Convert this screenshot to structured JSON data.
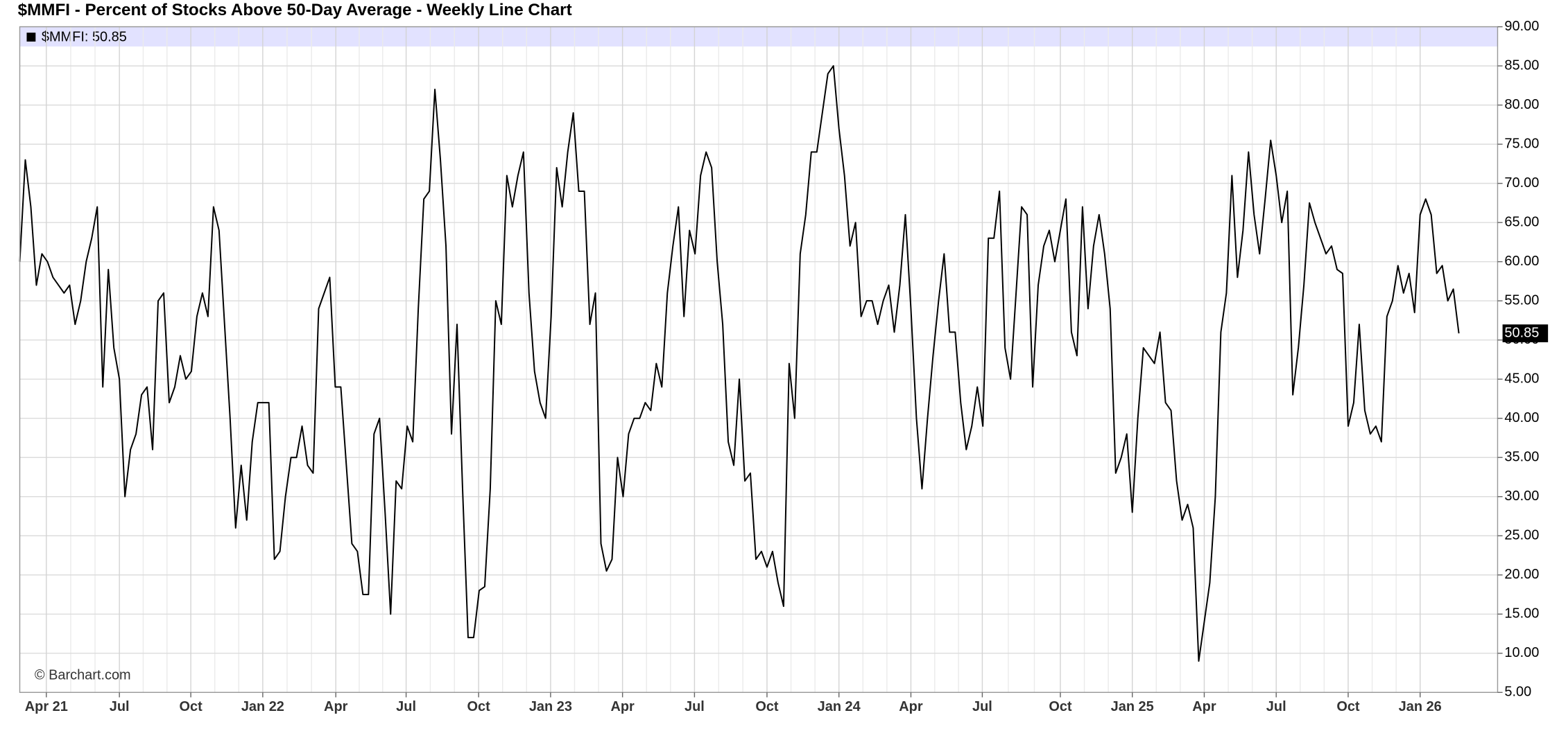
{
  "chart_data": {
    "type": "line",
    "title": "$MMFI - Percent of Stocks Above 50-Day Average - Weekly Line Chart",
    "legend_text": "$MMFI: 50.85",
    "watermark": "© Barchart.com",
    "grid": true,
    "ylim": [
      5,
      90
    ],
    "yticks": [
      {
        "value": 5,
        "label": "5.00"
      },
      {
        "value": 10,
        "label": "10.00"
      },
      {
        "value": 15,
        "label": "15.00"
      },
      {
        "value": 20,
        "label": "20.00"
      },
      {
        "value": 25,
        "label": "25.00"
      },
      {
        "value": 30,
        "label": "30.00"
      },
      {
        "value": 35,
        "label": "35.00"
      },
      {
        "value": 40,
        "label": "40.00"
      },
      {
        "value": 45,
        "label": "45.00"
      },
      {
        "value": 50,
        "label": "50.00"
      },
      {
        "value": 55,
        "label": "55.00"
      },
      {
        "value": 60,
        "label": "60.00"
      },
      {
        "value": 65,
        "label": "65.00"
      },
      {
        "value": 70,
        "label": "70.00"
      },
      {
        "value": 75,
        "label": "75.00"
      },
      {
        "value": 80,
        "label": "80.00"
      },
      {
        "value": 85,
        "label": "85.00"
      },
      {
        "value": 90,
        "label": "90.00"
      }
    ],
    "xlim": [
      0,
      267
    ],
    "xticks": [
      {
        "value": 4.8,
        "label": "Apr 21"
      },
      {
        "value": 18,
        "label": "Jul"
      },
      {
        "value": 30.9,
        "label": "Oct"
      },
      {
        "value": 43.9,
        "label": "Jan 22"
      },
      {
        "value": 57.1,
        "label": "Apr"
      },
      {
        "value": 69.8,
        "label": "Jul"
      },
      {
        "value": 82.9,
        "label": "Oct"
      },
      {
        "value": 95.9,
        "label": "Jan 23"
      },
      {
        "value": 108.9,
        "label": "Apr"
      },
      {
        "value": 121.9,
        "label": "Jul"
      },
      {
        "value": 135,
        "label": "Oct"
      },
      {
        "value": 148,
        "label": "Jan 24"
      },
      {
        "value": 161,
        "label": "Apr"
      },
      {
        "value": 173.9,
        "label": "Jul"
      },
      {
        "value": 188,
        "label": "Oct"
      },
      {
        "value": 201,
        "label": "Jan 25"
      },
      {
        "value": 214,
        "label": "Apr"
      },
      {
        "value": 227,
        "label": "Jul"
      },
      {
        "value": 240,
        "label": "Oct"
      },
      {
        "value": 253,
        "label": "Jan 26"
      }
    ],
    "series": [
      {
        "name": "$MMFI",
        "color": "#000000",
        "values": [
          60,
          73,
          67,
          57,
          61,
          60,
          58,
          57,
          56,
          57,
          52,
          55,
          60,
          63,
          67,
          44,
          59,
          49,
          45,
          30,
          36,
          38,
          43,
          44,
          36,
          55,
          56,
          42,
          44,
          48,
          45,
          46,
          53,
          56,
          53,
          67,
          64,
          52,
          40,
          26,
          34,
          27,
          37,
          42,
          42,
          42,
          22,
          23,
          30,
          35,
          35,
          39,
          34,
          33,
          54,
          56,
          58,
          44,
          44,
          34,
          24,
          23,
          17.5,
          17.5,
          38,
          40,
          28,
          15,
          32,
          31,
          39,
          37,
          54,
          68,
          69,
          82,
          73,
          62,
          38,
          52,
          31,
          12,
          12,
          18,
          18.5,
          31,
          55,
          52,
          71,
          67,
          71,
          74,
          56,
          46,
          42,
          40,
          53,
          72,
          67,
          74,
          79,
          69,
          69,
          52,
          56,
          24,
          20.5,
          22,
          35,
          30,
          38,
          40,
          40,
          42,
          41,
          47,
          44,
          56,
          62,
          67,
          53,
          64,
          61,
          71,
          74,
          72,
          60,
          52,
          37,
          34,
          45,
          32,
          33,
          22,
          23,
          21,
          23,
          19,
          16,
          47,
          40,
          61,
          66,
          74,
          74,
          79,
          84,
          85,
          77,
          71,
          62,
          65,
          53,
          55,
          55,
          52,
          55,
          57,
          51,
          57,
          66,
          54,
          40,
          31,
          40,
          48,
          55,
          61,
          51,
          51,
          42,
          36,
          39,
          44,
          39,
          63,
          63,
          69,
          49,
          45,
          56,
          67,
          66,
          44,
          57,
          62,
          64,
          60,
          64,
          68,
          51,
          48,
          67,
          54,
          62,
          66,
          61,
          54,
          33,
          35,
          38,
          28,
          40,
          49,
          48,
          47,
          51,
          42,
          41,
          32,
          27,
          29,
          26,
          9,
          14,
          19,
          30,
          51,
          56,
          71,
          58,
          64,
          74,
          66,
          61,
          68,
          75.5,
          71,
          65,
          69,
          43,
          49,
          57,
          67.5,
          65,
          63,
          61,
          62,
          59,
          58.5,
          39,
          42,
          52,
          41,
          38,
          39,
          37,
          53,
          55,
          59.5,
          56,
          58.5,
          53.5,
          66,
          68,
          66,
          58.5,
          59.5,
          55,
          56.5,
          50.85
        ]
      }
    ]
  }
}
